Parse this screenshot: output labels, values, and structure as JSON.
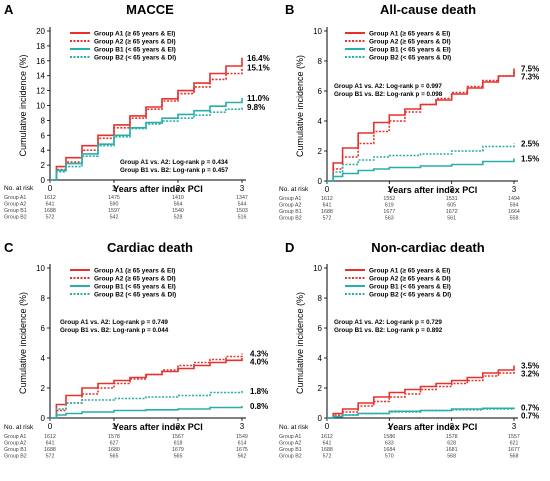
{
  "figure": {
    "ylabel": "Cumulative incidence (%)",
    "xlabel": "Years  after index PCI",
    "risk_header": "No. at risk",
    "colors": {
      "A1": "#e8302d",
      "A2": "#e8302d",
      "B1": "#2aaeaa",
      "B2": "#2aaeaa"
    }
  },
  "chart_data": [
    {
      "type": "line",
      "letter": "A",
      "title": "MACCE",
      "ylim": [
        0,
        20
      ],
      "yticks": [
        0,
        2,
        4,
        6,
        8,
        10,
        12,
        14,
        16,
        18,
        20
      ],
      "xlim": [
        0,
        3
      ],
      "xticks": [
        0,
        1,
        2,
        3
      ],
      "legend_position": "top-left",
      "stats": [
        "Group A1 vs. A2: Log-rank p = 0.434",
        "Group B1 vs. B2: Log-rank p = 0.457"
      ],
      "series": [
        {
          "key": "A1",
          "name": "Group A1 (≥ 65 years & EI)",
          "end_label": "16.4%",
          "x": [
            0,
            0.1,
            0.25,
            0.5,
            0.75,
            1.0,
            1.25,
            1.5,
            1.75,
            2.0,
            2.25,
            2.5,
            2.75,
            3.0
          ],
          "y": [
            0,
            1.8,
            3.0,
            4.6,
            6.0,
            7.4,
            8.6,
            9.8,
            10.9,
            12.0,
            13.0,
            14.3,
            15.3,
            16.4
          ]
        },
        {
          "key": "A2",
          "name": "Group A2 (≥ 65 years & DI)",
          "end_label": "15.1%",
          "x": [
            0,
            0.1,
            0.25,
            0.5,
            0.75,
            1.0,
            1.25,
            1.5,
            1.75,
            2.0,
            2.25,
            2.5,
            2.75,
            3.0
          ],
          "y": [
            0,
            1.4,
            2.4,
            4.0,
            5.6,
            7.0,
            8.3,
            9.5,
            10.6,
            11.6,
            12.5,
            13.5,
            14.3,
            15.1
          ]
        },
        {
          "key": "B1",
          "name": "Group B1 (< 65 years & EI)",
          "end_label": "11.0%",
          "x": [
            0,
            0.1,
            0.25,
            0.5,
            0.75,
            1.0,
            1.25,
            1.5,
            1.75,
            2.0,
            2.25,
            2.5,
            2.75,
            3.0
          ],
          "y": [
            0,
            1.3,
            2.2,
            3.5,
            4.8,
            6.0,
            7.0,
            7.7,
            8.3,
            8.8,
            9.3,
            9.9,
            10.4,
            11.0
          ]
        },
        {
          "key": "B2",
          "name": "Group B2 (< 65 years & DI)",
          "end_label": "9.8%",
          "x": [
            0,
            0.1,
            0.25,
            0.5,
            0.75,
            1.0,
            1.25,
            1.5,
            1.75,
            2.0,
            2.25,
            2.5,
            2.75,
            3.0
          ],
          "y": [
            0,
            1.1,
            1.8,
            3.2,
            4.6,
            5.8,
            6.9,
            7.5,
            7.9,
            8.3,
            8.7,
            9.1,
            9.5,
            9.8
          ]
        }
      ],
      "at_risk": {
        "A1": [
          "1612",
          "1475",
          "1410",
          "1347"
        ],
        "A2": [
          "641",
          "590",
          "564",
          "544"
        ],
        "B1": [
          "1688",
          "1597",
          "1540",
          "1503"
        ],
        "B2": [
          "572",
          "542",
          "528",
          "516"
        ]
      }
    },
    {
      "type": "line",
      "letter": "B",
      "title": "All-cause death",
      "ylim": [
        0,
        10
      ],
      "yticks": [
        0,
        2,
        4,
        6,
        8,
        10
      ],
      "xlim": [
        0,
        3
      ],
      "xticks": [
        0,
        1,
        2,
        3
      ],
      "legend_position": "top-left",
      "stats": [
        "Group A1 vs. A2: Log-rank p = 0.997",
        "Group B1 vs. B2: Log-rank p = 0.098"
      ],
      "series": [
        {
          "key": "A1",
          "name": "Group A1 (≥ 65 years & EI)",
          "end_label": "7.5%",
          "x": [
            0,
            0.1,
            0.25,
            0.5,
            0.75,
            1.0,
            1.25,
            1.5,
            1.75,
            2.0,
            2.25,
            2.5,
            2.75,
            3.0
          ],
          "y": [
            0,
            1.2,
            2.2,
            3.2,
            3.9,
            4.4,
            4.8,
            5.1,
            5.4,
            5.8,
            6.2,
            6.6,
            7.0,
            7.5
          ]
        },
        {
          "key": "A2",
          "name": "Group A2 (≥ 65 years & DI)",
          "end_label": "7.3%",
          "x": [
            0,
            0.1,
            0.25,
            0.5,
            0.75,
            1.0,
            1.25,
            1.5,
            1.75,
            2.0,
            2.25,
            2.5,
            2.75,
            3.0
          ],
          "y": [
            0,
            0.8,
            1.6,
            2.5,
            3.3,
            4.0,
            4.6,
            5.1,
            5.5,
            5.9,
            6.3,
            6.7,
            7.0,
            7.3
          ]
        },
        {
          "key": "B1",
          "name": "Group B1 (< 65 years & EI)",
          "end_label": "1.5%",
          "x": [
            0,
            0.1,
            0.25,
            0.5,
            0.75,
            1.0,
            1.5,
            2.0,
            2.5,
            3.0
          ],
          "y": [
            0,
            0.3,
            0.5,
            0.7,
            0.8,
            0.9,
            1.0,
            1.1,
            1.3,
            1.5
          ]
        },
        {
          "key": "B2",
          "name": "Group B2 (< 65 years & DI)",
          "end_label": "2.5%",
          "x": [
            0,
            0.1,
            0.25,
            0.5,
            0.75,
            1.0,
            1.5,
            2.0,
            2.5,
            3.0
          ],
          "y": [
            0,
            0.6,
            1.1,
            1.4,
            1.6,
            1.7,
            1.8,
            2.0,
            2.3,
            2.5
          ]
        }
      ],
      "at_risk": {
        "A1": [
          "1612",
          "1552",
          "1531",
          "1494"
        ],
        "A2": [
          "641",
          "619",
          "605",
          "594"
        ],
        "B1": [
          "1688",
          "1677",
          "1672",
          "1664"
        ],
        "B2": [
          "572",
          "563",
          "561",
          "558"
        ]
      }
    },
    {
      "type": "line",
      "letter": "C",
      "title": "Cardiac death",
      "ylim": [
        0,
        10
      ],
      "yticks": [
        0,
        2,
        4,
        6,
        8,
        10
      ],
      "xlim": [
        0,
        3
      ],
      "xticks": [
        0,
        1,
        2,
        3
      ],
      "legend_position": "top-left",
      "stats": [
        "Group A1 vs. A2: Log-rank p = 0.749",
        "Group B1 vs. B2: Log-rank p = 0.044"
      ],
      "series": [
        {
          "key": "A1",
          "name": "Group A1 (≥ 65 years & EI)",
          "end_label": "4.0%",
          "x": [
            0,
            0.1,
            0.25,
            0.5,
            0.75,
            1.0,
            1.25,
            1.5,
            1.75,
            2.0,
            2.25,
            2.5,
            2.75,
            3.0
          ],
          "y": [
            0,
            0.9,
            1.5,
            2.0,
            2.3,
            2.5,
            2.7,
            2.9,
            3.1,
            3.3,
            3.5,
            3.7,
            3.85,
            4.0
          ]
        },
        {
          "key": "A2",
          "name": "Group A2 (≥ 65 years & DI)",
          "end_label": "4.3%",
          "x": [
            0,
            0.1,
            0.25,
            0.5,
            0.75,
            1.0,
            1.25,
            1.5,
            1.75,
            2.0,
            2.25,
            2.5,
            2.75,
            3.0
          ],
          "y": [
            0,
            0.5,
            1.0,
            1.6,
            2.0,
            2.3,
            2.6,
            2.9,
            3.2,
            3.5,
            3.7,
            3.9,
            4.1,
            4.3
          ]
        },
        {
          "key": "B1",
          "name": "Group B1 (< 65 years & EI)",
          "end_label": "0.8%",
          "x": [
            0,
            0.1,
            0.25,
            0.5,
            1.0,
            1.5,
            2.0,
            2.5,
            3.0
          ],
          "y": [
            0,
            0.2,
            0.3,
            0.4,
            0.5,
            0.55,
            0.6,
            0.7,
            0.8
          ]
        },
        {
          "key": "B2",
          "name": "Group B2 (< 65 years & DI)",
          "end_label": "1.8%",
          "x": [
            0,
            0.1,
            0.25,
            0.5,
            1.0,
            1.5,
            2.0,
            2.5,
            3.0
          ],
          "y": [
            0,
            0.6,
            1.0,
            1.2,
            1.3,
            1.4,
            1.5,
            1.7,
            1.8
          ]
        }
      ],
      "at_risk": {
        "A1": [
          "1612",
          "1578",
          "1567",
          "1549"
        ],
        "A2": [
          "641",
          "627",
          "618",
          "614"
        ],
        "B1": [
          "1688",
          "1680",
          "1679",
          "1675"
        ],
        "B2": [
          "572",
          "565",
          "565",
          "562"
        ]
      }
    },
    {
      "type": "line",
      "letter": "D",
      "title": "Non-cardiac death",
      "ylim": [
        0,
        10
      ],
      "yticks": [
        0,
        2,
        4,
        6,
        8,
        10
      ],
      "xlim": [
        0,
        3
      ],
      "xticks": [
        0,
        1,
        2,
        3
      ],
      "legend_position": "top-left",
      "stats": [
        "Group A1 vs. A2: Log-rank p = 0.729",
        "Group B1 vs. B2: Log-rank p = 0.892"
      ],
      "series": [
        {
          "key": "A1",
          "name": "Group A1 (≥ 65 years & EI)",
          "end_label": "3.5%",
          "x": [
            0,
            0.1,
            0.25,
            0.5,
            0.75,
            1.0,
            1.25,
            1.5,
            1.75,
            2.0,
            2.25,
            2.5,
            2.75,
            3.0
          ],
          "y": [
            0,
            0.3,
            0.6,
            1.0,
            1.4,
            1.7,
            1.9,
            2.1,
            2.3,
            2.5,
            2.7,
            3.0,
            3.2,
            3.5
          ]
        },
        {
          "key": "A2",
          "name": "Group A2 (≥ 65 years & DI)",
          "end_label": "3.2%",
          "x": [
            0,
            0.1,
            0.25,
            0.5,
            0.75,
            1.0,
            1.25,
            1.5,
            1.75,
            2.0,
            2.25,
            2.5,
            2.75,
            3.0
          ],
          "y": [
            0,
            0.2,
            0.4,
            0.8,
            1.1,
            1.4,
            1.6,
            1.9,
            2.1,
            2.3,
            2.5,
            2.8,
            3.0,
            3.2
          ]
        },
        {
          "key": "B1",
          "name": "Group B1 (< 65 years & EI)",
          "end_label": "0.7%",
          "x": [
            0,
            0.1,
            0.25,
            0.5,
            1.0,
            1.5,
            2.0,
            2.5,
            3.0
          ],
          "y": [
            0,
            0.1,
            0.2,
            0.3,
            0.45,
            0.5,
            0.6,
            0.65,
            0.7
          ]
        },
        {
          "key": "B2",
          "name": "Group B2 (< 65 years & DI)",
          "end_label": "0.7%",
          "x": [
            0,
            0.1,
            0.25,
            0.5,
            1.0,
            1.5,
            2.0,
            2.5,
            3.0
          ],
          "y": [
            0,
            0.1,
            0.2,
            0.3,
            0.4,
            0.5,
            0.55,
            0.6,
            0.7
          ]
        }
      ],
      "at_risk": {
        "A1": [
          "1612",
          "1586",
          "1578",
          "1557"
        ],
        "A2": [
          "641",
          "633",
          "628",
          "621"
        ],
        "B1": [
          "1688",
          "1684",
          "1681",
          "1677"
        ],
        "B2": [
          "572",
          "570",
          "568",
          "568"
        ]
      }
    }
  ]
}
